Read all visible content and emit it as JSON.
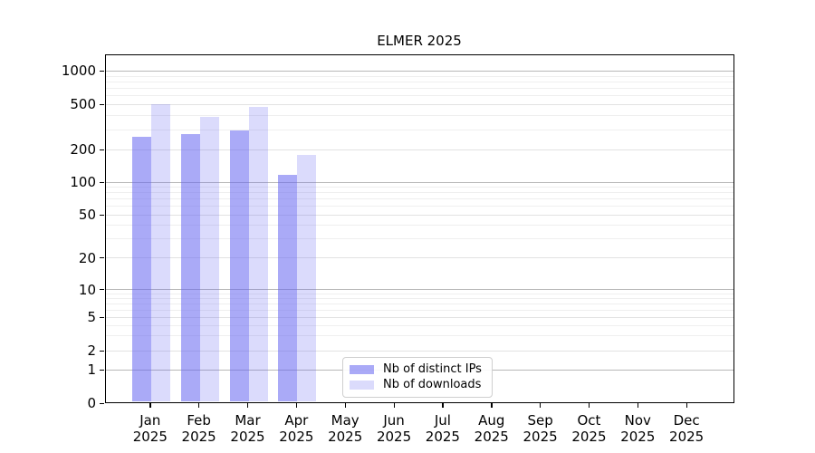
{
  "chart_data": {
    "type": "bar",
    "title": "ELMER 2025",
    "year_label": "2025",
    "categories": [
      "Jan",
      "Feb",
      "Mar",
      "Apr",
      "May",
      "Jun",
      "Jul",
      "Aug",
      "Sep",
      "Oct",
      "Nov",
      "Dec"
    ],
    "series": [
      {
        "name": "Nb of distinct IPs",
        "color": "rgba(100,100,240,0.55)",
        "values": [
          260,
          275,
          295,
          117,
          null,
          null,
          null,
          null,
          null,
          null,
          null,
          null
        ]
      },
      {
        "name": "Nb of downloads",
        "color": "rgba(100,100,240,0.23)",
        "values": [
          500,
          385,
          475,
          178,
          null,
          null,
          null,
          null,
          null,
          null,
          null,
          null
        ]
      }
    ],
    "yaxis": {
      "scale": "log",
      "ticks": [
        0,
        1,
        2,
        5,
        10,
        20,
        50,
        100,
        200,
        500,
        1000
      ],
      "ylim": [
        0,
        1400
      ]
    },
    "xlabel": "",
    "ylabel": "",
    "grid": true,
    "legend": {
      "position": "lower-center-left",
      "entries": [
        "Nb of distinct IPs",
        "Nb of downloads"
      ]
    },
    "background": "#ffffff",
    "axis_color": "#000000"
  }
}
